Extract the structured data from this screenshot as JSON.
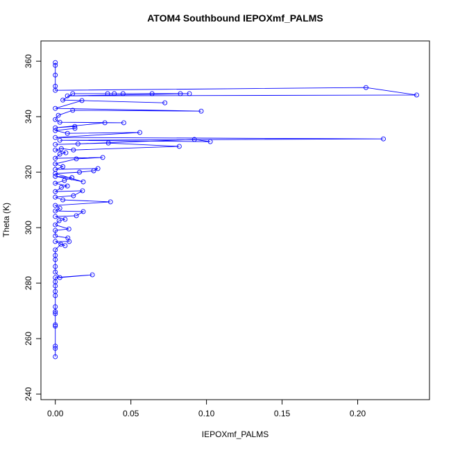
{
  "chart_data": {
    "type": "line",
    "title": "ATOM4 Southbound IEPOXmf_PALMS",
    "xlabel": "IEPOXmf_PALMS",
    "ylabel": "Theta (K)",
    "xlim": [
      -0.0095,
      0.2475
    ],
    "ylim": [
      238,
      367.3
    ],
    "xticks": [
      {
        "value": 0,
        "label": "0.00"
      },
      {
        "value": 0.05,
        "label": "0.05"
      },
      {
        "value": 0.1,
        "label": "0.10"
      },
      {
        "value": 0.15,
        "label": "0.15"
      },
      {
        "value": 0.2,
        "label": "0.20"
      }
    ],
    "yticks": [
      240,
      260,
      280,
      300,
      320,
      340,
      360
    ],
    "x": [
      0,
      0,
      0,
      0,
      0,
      0,
      0,
      0,
      0,
      0,
      0,
      0,
      0,
      0.0245,
      0.003,
      0,
      0,
      0,
      0,
      0,
      0.0037,
      0.0065,
      0,
      0.0092,
      0.0083,
      0,
      0,
      0.009,
      0,
      0.0025,
      0.0065,
      0,
      0.0139,
      0.0185,
      0,
      0.003,
      0,
      0.0365,
      0.005,
      0,
      0.012,
      0.018,
      0,
      0.004,
      0.008,
      0,
      0.006,
      0.011,
      0,
      0.0185,
      0,
      0.016,
      0.0254,
      0.0282,
      0,
      0.005,
      0,
      0.0139,
      0.0314,
      0,
      0.003,
      0.007,
      0,
      0.004,
      0.012,
      0.082,
      0.0351,
      0,
      0.015,
      0.092,
      0.1025,
      0.003,
      0.217,
      0,
      0.0559,
      0.008,
      0,
      0.013,
      0.0129,
      0,
      0.0328,
      0.0453,
      0.003,
      0,
      0.002,
      0.0115,
      0.0965,
      0,
      0.0176,
      0.0725,
      0.005,
      0.0115,
      0.0346,
      0.039,
      0.0448,
      0.064,
      0.0827,
      0.0887,
      0.008,
      0.239,
      0.2055,
      0,
      0,
      0,
      0,
      0
    ],
    "series": [
      {
        "name": "IEPOXmf_PALMS",
        "color": "#0000ff",
        "values": [
          253.5,
          256.5,
          257.3,
          264.5,
          265,
          269,
          269.7,
          271.5,
          275.5,
          277,
          279,
          280.5,
          282,
          283,
          282,
          284,
          286,
          288.5,
          290,
          292,
          294,
          293.5,
          295,
          295,
          296.3,
          297,
          299,
          299.5,
          301,
          302.5,
          303,
          304,
          304.3,
          305.8,
          306,
          307,
          308,
          309.3,
          310,
          311,
          311.5,
          313.3,
          313,
          314.5,
          315,
          316,
          317,
          318,
          318.5,
          316.5,
          319.5,
          320,
          320.5,
          321.3,
          321,
          322,
          323,
          324.8,
          325.3,
          325,
          326.5,
          327,
          328,
          328.5,
          328,
          329.3,
          330.5,
          330,
          330.2,
          331.8,
          331,
          331.5,
          332,
          332.5,
          334.3,
          334,
          335,
          335.8,
          336.5,
          336,
          337.8,
          337.8,
          338,
          339,
          340.5,
          342.3,
          342,
          343,
          345.8,
          345,
          346,
          348.3,
          348.3,
          348.3,
          348.3,
          348.3,
          348.3,
          348.3,
          347.5,
          347.8,
          350.5,
          349.5,
          351,
          355,
          358.5,
          359.5
        ]
      }
    ]
  }
}
